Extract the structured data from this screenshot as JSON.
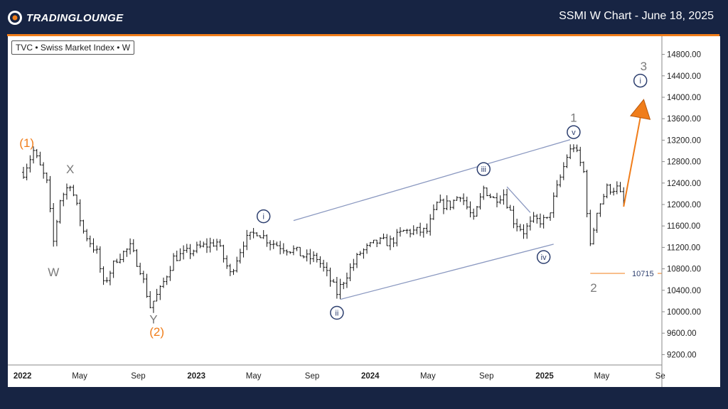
{
  "header": {
    "brand_name": "TradingLounge",
    "brand_display": "TRADINGLOUNGE",
    "title": "SSMI W Chart - June 18, 2025"
  },
  "chart": {
    "symbol_label": "TVC • Swiss Market Index • W"
  },
  "colors": {
    "background": "#172443",
    "accent": "#f07d1a",
    "wave_blue": "#2c3e6e",
    "wave_grey": "#7a7a7a",
    "channel": "#8a98c0",
    "candle": "#111111"
  },
  "chart_data": {
    "type": "ohlc",
    "timeframe": "W",
    "instrument": "Swiss Market Index",
    "x_ticks": [
      "2022",
      "May",
      "Sep",
      "2023",
      "May",
      "Sep",
      "2024",
      "May",
      "Sep",
      "2025",
      "May",
      "Se"
    ],
    "y_ticks": [
      9200,
      9600,
      10000,
      10400,
      10800,
      11200,
      11600,
      12000,
      12400,
      12800,
      13200,
      13600,
      14000,
      14400,
      14800
    ],
    "ylim": [
      8850,
      15050
    ],
    "price_path": [
      [
        "2022-01-03",
        12600
      ],
      [
        "2022-01-24",
        13000
      ],
      [
        "2022-02-21",
        12400
      ],
      [
        "2022-03-07",
        11300
      ],
      [
        "2022-03-21",
        12100
      ],
      [
        "2022-04-11",
        12400
      ],
      [
        "2022-05-09",
        11500
      ],
      [
        "2022-06-06",
        11100
      ],
      [
        "2022-06-20",
        10500
      ],
      [
        "2022-07-18",
        11000
      ],
      [
        "2022-08-15",
        11200
      ],
      [
        "2022-09-05",
        10800
      ],
      [
        "2022-09-26",
        10100
      ],
      [
        "2022-10-17",
        10400
      ],
      [
        "2022-11-14",
        11000
      ],
      [
        "2022-12-12",
        11100
      ],
      [
        "2023-01-09",
        11200
      ],
      [
        "2023-02-13",
        11300
      ],
      [
        "2023-03-13",
        10700
      ],
      [
        "2023-04-10",
        11300
      ],
      [
        "2023-05-08",
        11500
      ],
      [
        "2023-06-05",
        11300
      ],
      [
        "2023-07-03",
        11200
      ],
      [
        "2023-07-24",
        11150
      ],
      [
        "2023-08-21",
        11000
      ],
      [
        "2023-09-11",
        11000
      ],
      [
        "2023-10-02",
        10700
      ],
      [
        "2023-10-23",
        10350
      ],
      [
        "2023-11-13",
        10700
      ],
      [
        "2023-12-11",
        11100
      ],
      [
        "2024-01-15",
        11300
      ],
      [
        "2024-02-12",
        11300
      ],
      [
        "2024-03-11",
        11500
      ],
      [
        "2024-04-08",
        11500
      ],
      [
        "2024-04-29",
        11500
      ],
      [
        "2024-05-20",
        12000
      ],
      [
        "2024-06-17",
        12000
      ],
      [
        "2024-07-08",
        12200
      ],
      [
        "2024-08-05",
        11700
      ],
      [
        "2024-08-26",
        12300
      ],
      [
        "2024-09-16",
        12100
      ],
      [
        "2024-10-07",
        12200
      ],
      [
        "2024-10-28",
        11700
      ],
      [
        "2024-11-18",
        11500
      ],
      [
        "2024-12-09",
        11700
      ],
      [
        "2025-01-06",
        11700
      ],
      [
        "2025-01-27",
        12300
      ],
      [
        "2025-02-17",
        12900
      ],
      [
        "2025-03-03",
        13100
      ],
      [
        "2025-03-24",
        12600
      ],
      [
        "2025-04-07",
        11200
      ],
      [
        "2025-04-21",
        11900
      ],
      [
        "2025-05-12",
        12300
      ],
      [
        "2025-06-02",
        12300
      ],
      [
        "2025-06-16",
        12050
      ]
    ],
    "wave_labels": [
      {
        "text": "(1)",
        "date": "2022-01-10",
        "price": 13150,
        "color": "orange"
      },
      {
        "text": "X",
        "date": "2022-04-11",
        "price": 12660,
        "color": "grey"
      },
      {
        "text": "W",
        "date": "2022-03-07",
        "price": 10740,
        "color": "grey"
      },
      {
        "text": "Y",
        "date": "2022-10-03",
        "price": 9860,
        "color": "grey"
      },
      {
        "text": "(2)",
        "date": "2022-10-10",
        "price": 9630,
        "color": "orange"
      },
      {
        "text": "i",
        "date": "2023-05-22",
        "price": 11780,
        "color": "blue",
        "circled": true
      },
      {
        "text": "ii",
        "date": "2023-10-23",
        "price": 9980,
        "color": "blue",
        "circled": true
      },
      {
        "text": "iii",
        "date": "2024-08-26",
        "price": 12660,
        "color": "blue",
        "circled": true
      },
      {
        "text": "iv",
        "date": "2024-12-30",
        "price": 11020,
        "color": "blue",
        "circled": true
      },
      {
        "text": "1",
        "date": "2025-03-03",
        "price": 13620,
        "color": "grey"
      },
      {
        "text": "v",
        "date": "2025-03-03",
        "price": 13350,
        "color": "blue",
        "circled": true
      },
      {
        "text": "2",
        "date": "2025-04-14",
        "price": 10450,
        "color": "grey"
      },
      {
        "text": "3",
        "date": "2025-07-28",
        "price": 14580,
        "color": "grey"
      },
      {
        "text": "i",
        "date": "2025-07-21",
        "price": 14310,
        "color": "blue",
        "circled": true
      }
    ],
    "channel_lines": [
      {
        "from": [
          "2023-07-24",
          11700
        ],
        "to": [
          "2025-02-24",
          13210
        ]
      },
      {
        "from": [
          "2023-10-30",
          10230
        ],
        "to": [
          "2025-01-20",
          11260
        ]
      },
      {
        "from": [
          "2024-10-14",
          12330
        ],
        "to": [
          "2024-12-02",
          11850
        ]
      }
    ],
    "support_level": {
      "value": 10715,
      "label": "10715",
      "from": "2025-04-07"
    },
    "projection_arrow": {
      "from": [
        "2025-06-16",
        11960
      ],
      "to": [
        "2025-07-21",
        13620
      ]
    }
  }
}
